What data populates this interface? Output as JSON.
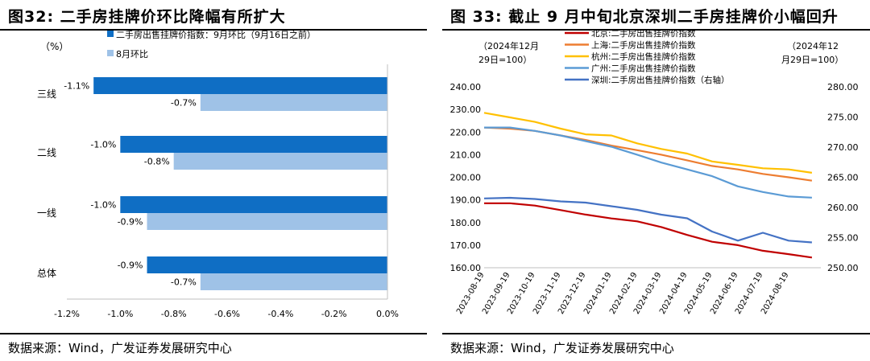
{
  "left": {
    "title": "图32:  二手房挂牌价环比降幅有所扩大",
    "source": "数据来源：Wind，广发证券发展研究中心"
  },
  "right": {
    "title": "图 33:  截止 9 月中旬北京深圳二手房挂牌价小幅回升",
    "source": "数据来源：Wind，广发证券发展研究中心"
  },
  "chart_data": [
    {
      "type": "bar",
      "orientation": "horizontal",
      "title": "图32:  二手房挂牌价环比降幅有所扩大",
      "unit_label": "（%）",
      "categories": [
        "三线",
        "二线",
        "一线",
        "总体"
      ],
      "series": [
        {
          "name": "二手房出售挂牌价指数：9月环比（9月16日之前）",
          "color": "#0f6ec4",
          "values": [
            -1.1,
            -1.0,
            -1.0,
            -0.9
          ],
          "labels": [
            "-1.1%",
            "-1.0%",
            "-1.0%",
            "-0.9%"
          ]
        },
        {
          "name": "8月环比",
          "color": "#9fc2e7",
          "values": [
            -0.7,
            -0.8,
            -0.9,
            -0.7
          ],
          "labels": [
            "-0.7%",
            "-0.8%",
            "-0.9%",
            "-0.7%"
          ]
        }
      ],
      "xlim": [
        -1.2,
        0.0
      ],
      "xticks": [
        "-1.2%",
        "-1.0%",
        "-0.8%",
        "-0.6%",
        "-0.4%",
        "-0.2%",
        "0.0%"
      ],
      "grid": false,
      "legend_position": "top"
    },
    {
      "type": "line",
      "title": "图 33:  截止 9 月中旬北京深圳二手房挂牌价小幅回升",
      "left_axis_label": "（2024年12月29日=100）",
      "right_axis_label": "（2024年12月29日=100）",
      "x_ticks": [
        "2023-08-19",
        "2023-09-19",
        "2023-10-19",
        "2023-11-19",
        "2023-12-19",
        "2024-01-19",
        "2024-02-19",
        "2024-03-19",
        "2024-04-19",
        "2024-05-19",
        "2024-06-19",
        "2024-07-19",
        "2024-08-19"
      ],
      "ylim_left": [
        160,
        240
      ],
      "yticks_left": [
        "240.00",
        "230.00",
        "220.00",
        "210.00",
        "200.00",
        "190.00",
        "180.00",
        "170.00",
        "160.00"
      ],
      "ylim_right": [
        250,
        280
      ],
      "yticks_right": [
        "280.00",
        "275.00",
        "270.00",
        "265.00",
        "260.00",
        "255.00",
        "250.00"
      ],
      "grid": false,
      "legend_position": "top-center",
      "x_start": "2023-08-19",
      "series": [
        {
          "name": "北京:二手房出售挂牌价指数",
          "color": "#c00000",
          "axis": "left",
          "x": [
            "2023-08-19",
            "2023-09-19",
            "2023-10-19",
            "2023-11-19",
            "2023-12-19",
            "2024-01-19",
            "2024-02-19",
            "2024-03-19",
            "2024-04-19",
            "2024-05-19",
            "2024-06-19",
            "2024-07-19",
            "2024-08-19",
            "2024-09-16"
          ],
          "y": [
            188.5,
            188.5,
            187.5,
            185.5,
            183.5,
            181.8,
            180.5,
            178.0,
            174.5,
            171.5,
            170.0,
            167.5,
            166.0,
            164.5
          ]
        },
        {
          "name": "上海:二手房出售挂牌价指数",
          "color": "#ed7d31",
          "axis": "left",
          "x": [
            "2023-08-19",
            "2023-09-19",
            "2023-10-19",
            "2023-11-19",
            "2023-12-19",
            "2024-01-19",
            "2024-02-19",
            "2024-03-19",
            "2024-04-19",
            "2024-05-19",
            "2024-06-19",
            "2024-07-19",
            "2024-08-19",
            "2024-09-16"
          ],
          "y": [
            222.0,
            221.5,
            220.5,
            218.5,
            216.5,
            214.0,
            212.0,
            210.0,
            207.5,
            205.0,
            203.5,
            201.5,
            200.0,
            198.5
          ]
        },
        {
          "name": "杭州:二手房出售挂牌价指数",
          "color": "#ffc000",
          "axis": "left",
          "x": [
            "2023-08-19",
            "2023-09-19",
            "2023-10-19",
            "2023-11-19",
            "2023-12-19",
            "2024-01-19",
            "2024-02-19",
            "2024-03-19",
            "2024-04-19",
            "2024-05-19",
            "2024-06-19",
            "2024-07-19",
            "2024-08-19",
            "2024-09-16"
          ],
          "y": [
            228.5,
            226.5,
            224.5,
            221.5,
            219.0,
            218.5,
            215.0,
            212.5,
            210.5,
            207.0,
            205.5,
            204.0,
            203.5,
            202.0
          ]
        },
        {
          "name": "广州:二手房出售挂牌价指数",
          "color": "#5b9bd5",
          "axis": "left",
          "x": [
            "2023-08-19",
            "2023-09-19",
            "2023-10-19",
            "2023-11-19",
            "2023-12-19",
            "2024-01-19",
            "2024-02-19",
            "2024-03-19",
            "2024-04-19",
            "2024-05-19",
            "2024-06-19",
            "2024-07-19",
            "2024-08-19",
            "2024-09-16"
          ],
          "y": [
            222.0,
            222.0,
            220.5,
            218.5,
            216.0,
            213.5,
            210.0,
            206.5,
            203.5,
            200.5,
            196.0,
            193.5,
            191.5,
            191.0
          ]
        },
        {
          "name": "深圳:二手房出售挂牌价指数（右轴）",
          "color": "#4472c4",
          "axis": "right",
          "x": [
            "2023-08-19",
            "2023-09-19",
            "2023-10-19",
            "2023-11-19",
            "2023-12-19",
            "2024-01-19",
            "2024-02-19",
            "2024-03-19",
            "2024-04-19",
            "2024-05-19",
            "2024-06-19",
            "2024-07-19",
            "2024-08-19",
            "2024-09-16"
          ],
          "y": [
            261.5,
            261.6,
            261.4,
            261.0,
            260.8,
            260.2,
            259.6,
            258.8,
            258.2,
            256.0,
            254.5,
            255.8,
            254.5,
            254.2
          ]
        }
      ]
    }
  ]
}
